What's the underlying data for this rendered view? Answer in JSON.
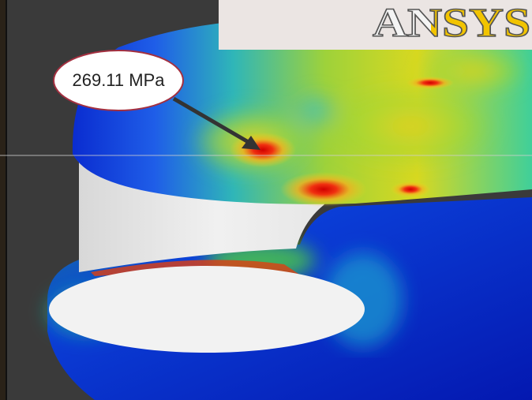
{
  "annotation": {
    "label": "269.11 MPa"
  },
  "logo": {
    "text": "ANSYS"
  }
}
